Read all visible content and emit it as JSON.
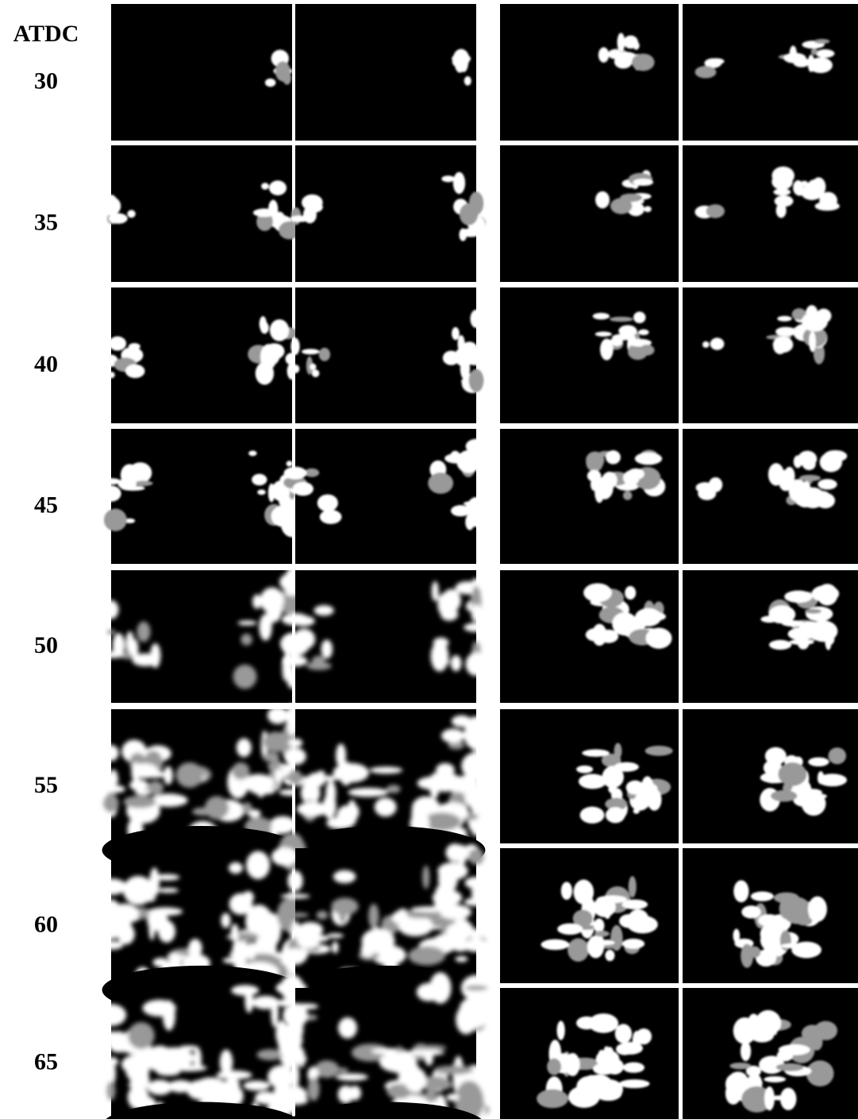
{
  "figure": {
    "axis_label": "ATDC",
    "rows": [
      "30",
      "35",
      "40",
      "45",
      "50",
      "55",
      "60",
      "65"
    ]
  }
}
